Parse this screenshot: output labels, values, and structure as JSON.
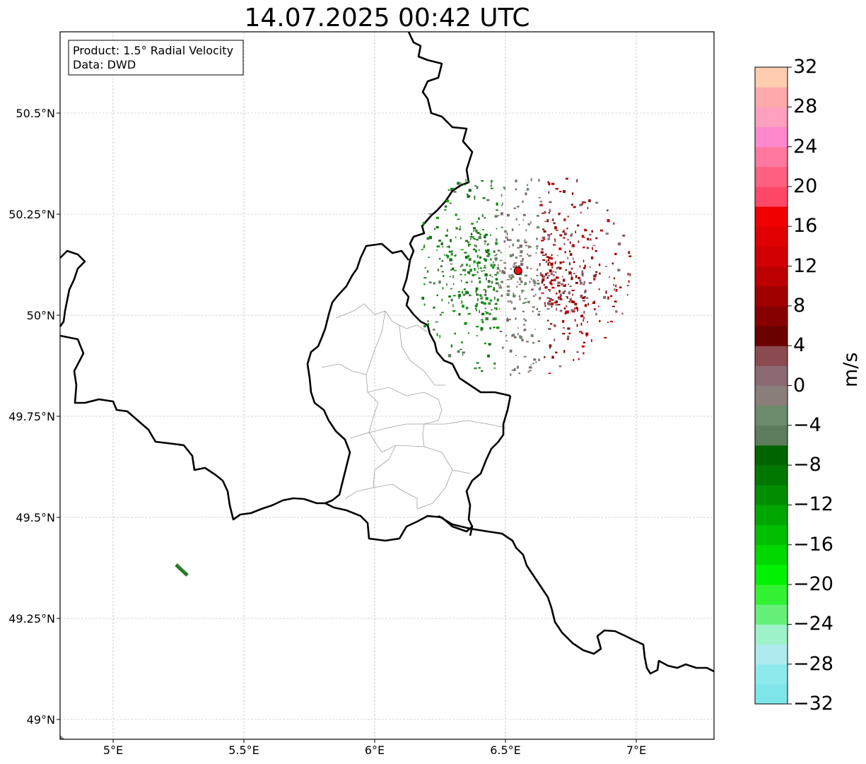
{
  "title": "14.07.2025 00:42 UTC",
  "info_box": {
    "line1": "Product: 1.5° Radial Velocity",
    "line2": "Data: DWD"
  },
  "map": {
    "lon_range": [
      4.8,
      7.3
    ],
    "lat_range": [
      48.95,
      50.7
    ],
    "lon_ticks": [
      {
        "value": 5.0,
        "label": "5°E"
      },
      {
        "value": 5.5,
        "label": "5.5°E"
      },
      {
        "value": 6.0,
        "label": "6°E"
      },
      {
        "value": 6.5,
        "label": "6.5°E"
      },
      {
        "value": 7.0,
        "label": "7°E"
      }
    ],
    "lat_ticks": [
      {
        "value": 49.0,
        "label": "49°N"
      },
      {
        "value": 49.25,
        "label": "49.25°N"
      },
      {
        "value": 49.5,
        "label": "49.5°N"
      },
      {
        "value": 49.75,
        "label": "49.75°N"
      },
      {
        "value": 50.0,
        "label": "50°N"
      },
      {
        "value": 50.25,
        "label": "50.25°N"
      },
      {
        "value": 50.5,
        "label": "50.5°N"
      }
    ],
    "radar_site": {
      "lon": 6.548,
      "lat": 50.11,
      "color": "#e8141a"
    }
  },
  "colorbar": {
    "unit": "m/s",
    "min": -32,
    "max": 32,
    "labels": [
      "32",
      "28",
      "24",
      "20",
      "16",
      "12",
      "8",
      "4",
      "0",
      "−4",
      "−8",
      "−12",
      "−16",
      "−20",
      "−24",
      "−28",
      "−32"
    ],
    "colors_bottom_to_top": [
      "#7ee6e8",
      "#8ee9ec",
      "#aeeaee",
      "#9ef2c9",
      "#66f07a",
      "#33f233",
      "#00f200",
      "#00d800",
      "#00be00",
      "#00a600",
      "#008e00",
      "#007800",
      "#006400",
      "#5c7c5c",
      "#6c8a6c",
      "#8a7e7a",
      "#8b6a74",
      "#8a4a50",
      "#6a0000",
      "#860000",
      "#a00000",
      "#bc0000",
      "#d20000",
      "#e00000",
      "#f00000",
      "#ff4868",
      "#ff6080",
      "#ff78a0",
      "#ff88cc",
      "#ffa0c0",
      "#ffaaaa",
      "#ffccb0"
    ]
  }
}
